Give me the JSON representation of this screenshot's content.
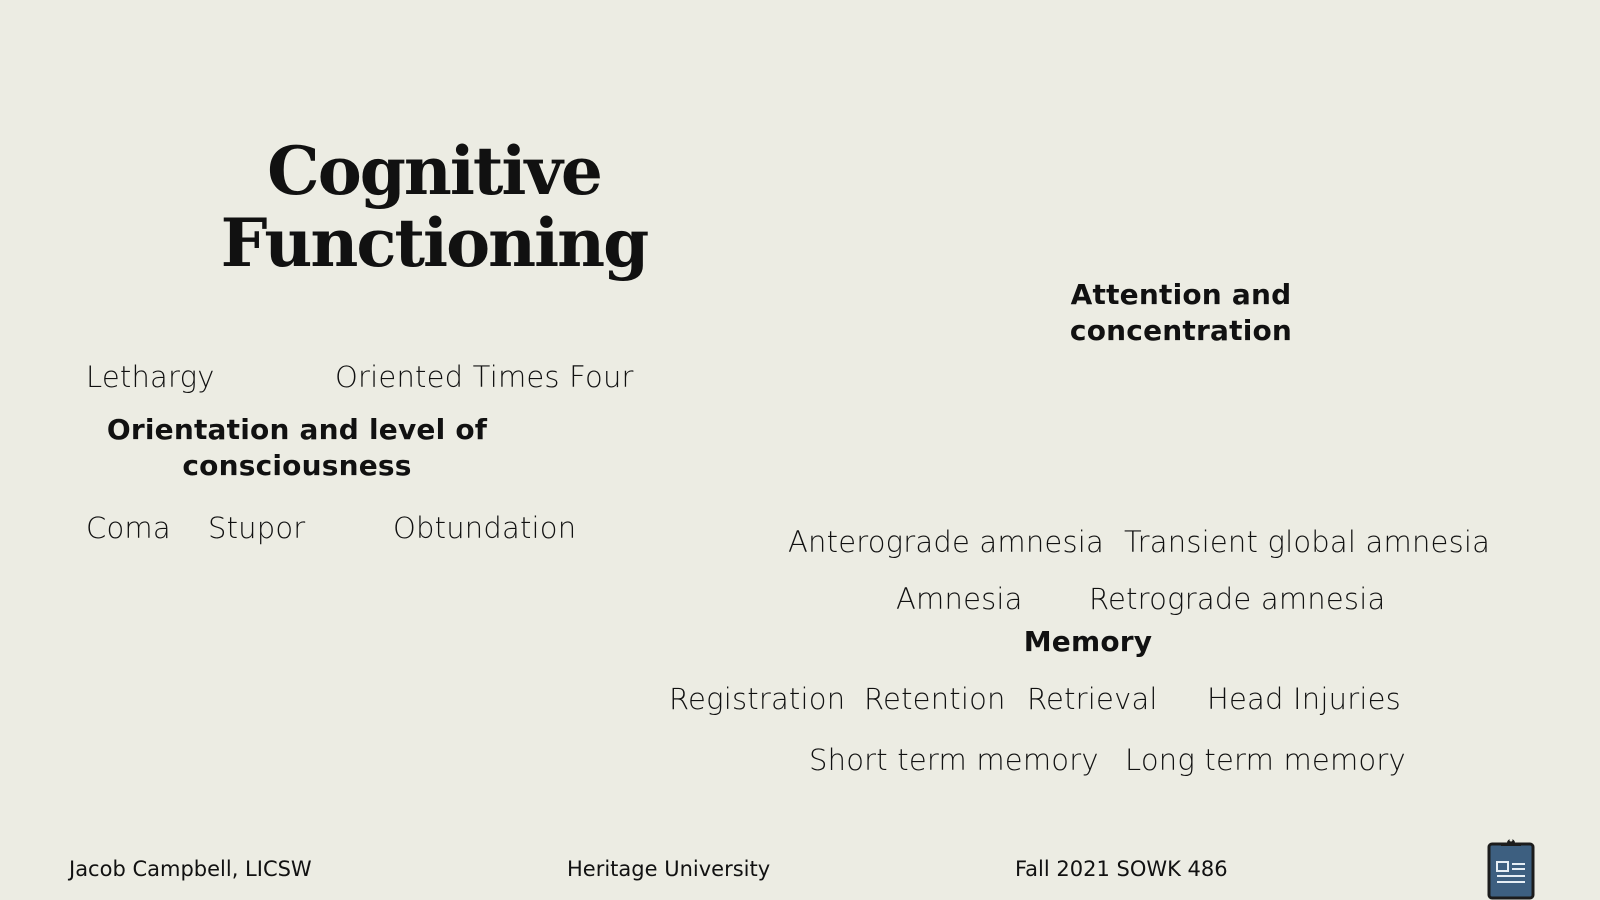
{
  "title": {
    "line1": "Cognitive",
    "line2": "Functioning"
  },
  "orientation": {
    "heading_line1": "Orientation and level of",
    "heading_line2": "consciousness",
    "terms": [
      "Lethargy",
      "Oriented Times Four",
      "Coma",
      "Stupor",
      "Obtundation"
    ]
  },
  "attention": {
    "heading_line1": "Attention and",
    "heading_line2": "concentration"
  },
  "memory": {
    "heading": "Memory",
    "terms": [
      "Anterograde amnesia",
      "Transient global amnesia",
      "Amnesia",
      "Retrograde amnesia",
      "Registration",
      "Retention",
      "Retrieval",
      "Head Injuries",
      "Short term memory",
      "Long term memory"
    ]
  },
  "footer": {
    "author": "Jacob Campbell, LICSW",
    "institution": "Heritage University",
    "course": "Fall 2021 SOWK 486",
    "icon": "clipboard-icon"
  }
}
